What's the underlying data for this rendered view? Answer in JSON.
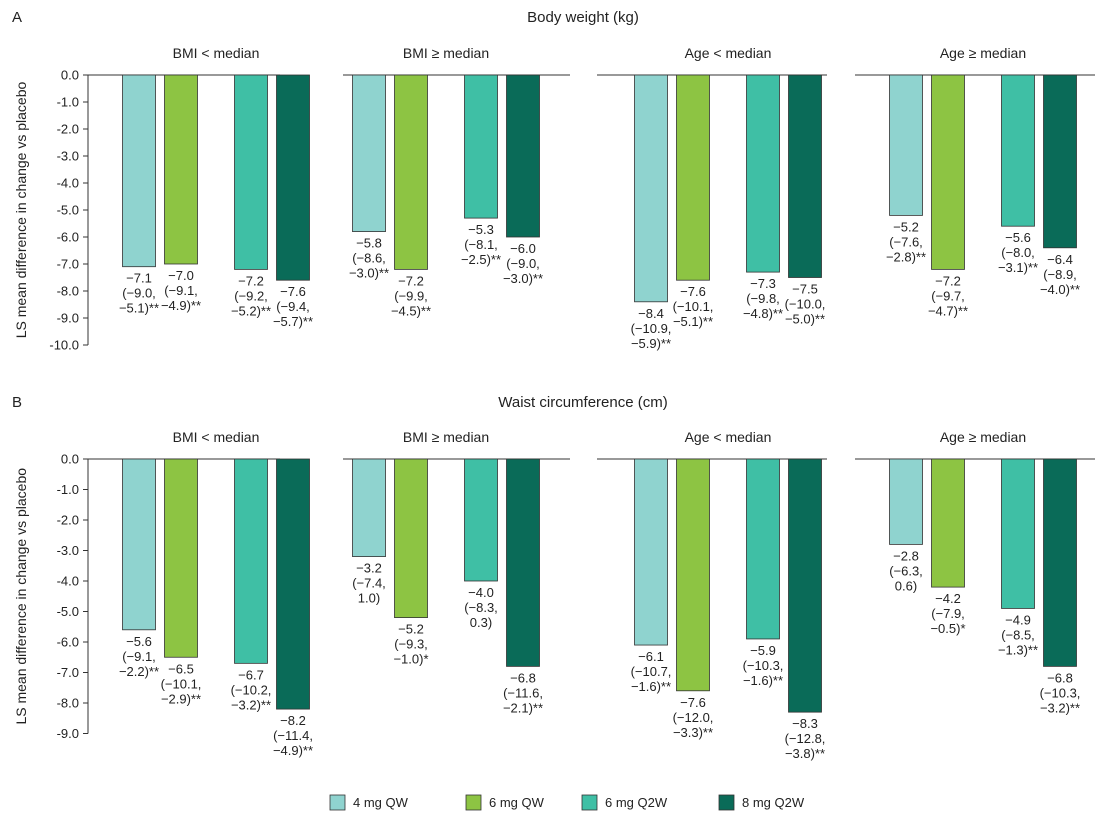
{
  "colors": {
    "4 mg QW": "#8fd3cf",
    "6 mg QW": "#8dc443",
    "6 mg Q2W": "#3fbfa5",
    "8 mg Q2W": "#0a6b58"
  },
  "legend": [
    "4 mg QW",
    "6 mg QW",
    "6 mg Q2W",
    "8 mg Q2W"
  ],
  "chart_data": [
    {
      "panel": "A",
      "type": "bar",
      "title": "Body weight (kg)",
      "ylabel": "LS mean difference in change vs placebo",
      "ylim": [
        -10,
        0
      ],
      "yticks": [
        "0.0",
        "-1.0",
        "-2.0",
        "-3.0",
        "-4.0",
        "-5.0",
        "-6.0",
        "-7.0",
        "-8.0",
        "-9.0",
        "-10.0"
      ],
      "groups": [
        "BMI < median",
        "BMI ≥ median",
        "Age < median",
        "Age ≥ median"
      ],
      "series": [
        {
          "name": "4 mg QW",
          "values": [
            -7.1,
            -5.8,
            -8.4,
            -5.2
          ],
          "labels": [
            [
              "−7.1",
              "(−9.0,",
              "−5.1)**"
            ],
            [
              "−5.8",
              "(−8.6,",
              "−3.0)**"
            ],
            [
              "−8.4",
              "(−10.9,",
              "−5.9)**"
            ],
            [
              "−5.2",
              "(−7.6,",
              "−2.8)**"
            ]
          ]
        },
        {
          "name": "6 mg QW",
          "values": [
            -7.0,
            -7.2,
            -7.6,
            -7.2
          ],
          "labels": [
            [
              "−7.0",
              "(−9.1,",
              "−4.9)**"
            ],
            [
              "−7.2",
              "(−9.9,",
              "−4.5)**"
            ],
            [
              "−7.6",
              "(−10.1,",
              "−5.1)**"
            ],
            [
              "−7.2",
              "(−9.7,",
              "−4.7)**"
            ]
          ]
        },
        {
          "name": "6 mg Q2W",
          "values": [
            -7.2,
            -5.3,
            -7.3,
            -5.6
          ],
          "labels": [
            [
              "−7.2",
              "(−9.2,",
              "−5.2)**"
            ],
            [
              "−5.3",
              "(−8.1,",
              "−2.5)**"
            ],
            [
              "−7.3",
              "(−9.8,",
              "−4.8)**"
            ],
            [
              "−5.6",
              "(−8.0,",
              "−3.1)**"
            ]
          ]
        },
        {
          "name": "8 mg Q2W",
          "values": [
            -7.6,
            -6.0,
            -7.5,
            -6.4
          ],
          "labels": [
            [
              "−7.6",
              "(−9.4,",
              "−5.7)**"
            ],
            [
              "−6.0",
              "(−9.0,",
              "−3.0)**"
            ],
            [
              "−7.5",
              "(−10.0,",
              "−5.0)**"
            ],
            [
              "−6.4",
              "(−8.9,",
              "−4.0)**"
            ]
          ]
        }
      ]
    },
    {
      "panel": "B",
      "type": "bar",
      "title": "Waist circumference (cm)",
      "ylabel": "LS mean difference in change vs placebo",
      "ylim": [
        -9,
        0
      ],
      "yticks": [
        "0.0",
        "-1.0",
        "-2.0",
        "-3.0",
        "-4.0",
        "-5.0",
        "-6.0",
        "-7.0",
        "-8.0",
        "-9.0"
      ],
      "groups": [
        "BMI < median",
        "BMI ≥ median",
        "Age < median",
        "Age ≥ median"
      ],
      "series": [
        {
          "name": "4 mg QW",
          "values": [
            -5.6,
            -3.2,
            -6.1,
            -2.8
          ],
          "labels": [
            [
              "−5.6",
              "(−9.1,",
              "−2.2)**"
            ],
            [
              "−3.2",
              "(−7.4,",
              "1.0)"
            ],
            [
              "−6.1",
              "(−10.7,",
              "−1.6)**"
            ],
            [
              "−2.8",
              "(−6.3,",
              "0.6)"
            ]
          ]
        },
        {
          "name": "6 mg QW",
          "values": [
            -6.5,
            -5.2,
            -7.6,
            -4.2
          ],
          "labels": [
            [
              "−6.5",
              "(−10.1,",
              "−2.9)**"
            ],
            [
              "−5.2",
              "(−9.3,",
              "−1.0)*"
            ],
            [
              "−7.6",
              "(−12.0,",
              "−3.3)**"
            ],
            [
              "−4.2",
              "(−7.9,",
              "−0.5)*"
            ]
          ]
        },
        {
          "name": "6 mg Q2W",
          "values": [
            -6.7,
            -4.0,
            -5.9,
            -4.9
          ],
          "labels": [
            [
              "−6.7",
              "(−10.2,",
              "−3.2)**"
            ],
            [
              "−4.0",
              "(−8.3,",
              "0.3)"
            ],
            [
              "−5.9",
              "(−10.3,",
              "−1.6)**"
            ],
            [
              "−4.9",
              "(−8.5,",
              "−1.3)**"
            ]
          ]
        },
        {
          "name": "8 mg Q2W",
          "values": [
            -8.2,
            -6.8,
            -8.3,
            -6.8
          ],
          "labels": [
            [
              "−8.2",
              "(−11.4,",
              "−4.9)**"
            ],
            [
              "−6.8",
              "(−11.6,",
              "−2.1)**"
            ],
            [
              "−8.3",
              "(−12.8,",
              "−3.8)**"
            ],
            [
              "−6.8",
              "(−10.3,",
              "−3.2)**"
            ]
          ]
        }
      ]
    }
  ]
}
